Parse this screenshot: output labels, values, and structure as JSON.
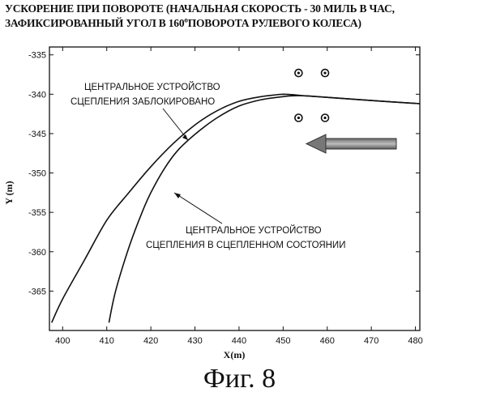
{
  "caption": "Фиг. 8",
  "chart_data": {
    "type": "line",
    "title_line1": "УСКОРЕНИЕ ПРИ ПОВОРОТЕ (НАЧАЛЬНАЯ СКОРОСТЬ - 30 МИЛЬ В ЧАС,",
    "title_line2_pre": "ЗАФИКСИРОВАННЫЙ УГОЛ В 160",
    "title_line2_sup": "o",
    "title_line2_post": "ПОВОРОТА РУЛЕВОГО КОЛЕСА)",
    "xlabel": "X(m)",
    "ylabel": "Y (m)",
    "xlim": [
      397,
      481
    ],
    "ylim": [
      -370,
      -334
    ],
    "x_ticks": [
      400,
      410,
      420,
      430,
      440,
      450,
      460,
      470,
      480
    ],
    "y_ticks": [
      -335,
      -340,
      -345,
      -350,
      -355,
      -360,
      -365
    ],
    "grid": false,
    "series": [
      {
        "annotation_line1": "ЦЕНТРАЛЬНОЕ УСТРОЙСТВО",
        "annotation_line2": "СЦЕПЛЕНИЯ ЗАБЛОКИРОВАНО",
        "x": [
          397.5,
          400,
          405,
          410,
          415,
          420,
          425,
          430,
          435,
          440,
          445,
          448,
          450,
          452,
          455,
          460,
          470,
          481
        ],
        "y": [
          -369.0,
          -366.0,
          -361.0,
          -356.0,
          -352.5,
          -349.2,
          -346.3,
          -343.9,
          -342.1,
          -340.9,
          -340.3,
          -340.1,
          -340.0,
          -340.05,
          -340.2,
          -340.4,
          -340.8,
          -341.2
        ]
      },
      {
        "annotation_line1": "ЦЕНТРАЛЬНОЕ УСТРОЙСТВО",
        "annotation_line2": "СЦЕПЛЕНИЯ В СЦЕПЛЕННОМ СОСТОЯНИИ",
        "x": [
          410.5,
          412,
          415,
          418,
          420,
          423,
          426,
          430,
          435,
          440,
          445,
          450,
          452,
          455,
          460,
          470,
          481
        ],
        "y": [
          -369.0,
          -365.0,
          -359.5,
          -355.0,
          -352.5,
          -349.5,
          -347.2,
          -345.1,
          -343.0,
          -341.5,
          -340.7,
          -340.3,
          -340.2,
          -340.2,
          -340.4,
          -340.8,
          -341.2
        ]
      }
    ],
    "markers": [
      {
        "x": 453.5,
        "y": -337.3
      },
      {
        "x": 459.5,
        "y": -337.3
      },
      {
        "x": 453.5,
        "y": -343.0
      },
      {
        "x": 459.5,
        "y": -343.0
      }
    ],
    "direction_arrow": "left"
  }
}
